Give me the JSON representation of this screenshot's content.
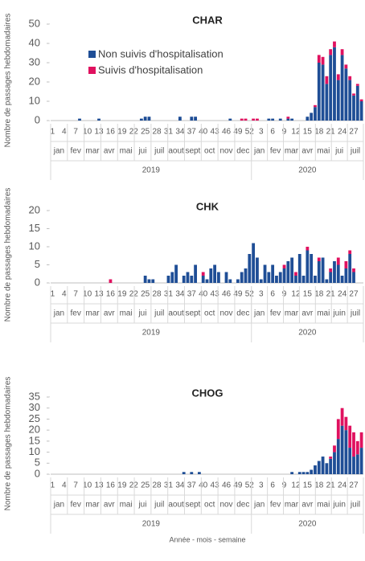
{
  "chart_data": [
    {
      "type": "bar",
      "stacked": true,
      "title": "CHAR",
      "y_label": "Nombre de passages hebdomadaires",
      "legend": "upper left",
      "categories": [
        "1",
        null,
        null,
        "4",
        null,
        null,
        "7",
        null,
        null,
        "10",
        null,
        null,
        "13",
        null,
        null,
        "16",
        null,
        null,
        "19",
        null,
        null,
        "22",
        null,
        null,
        "25",
        null,
        null,
        "28",
        null,
        null,
        "31",
        null,
        null,
        "34",
        null,
        null,
        "37",
        null,
        null,
        "40",
        null,
        null,
        "43",
        null,
        null,
        "46",
        null,
        null,
        "49",
        null,
        null,
        "52",
        null,
        null,
        "3",
        null,
        null,
        "6",
        null,
        null,
        "9",
        null,
        null,
        "12",
        null,
        null,
        "15",
        null,
        null,
        "18",
        null,
        null,
        "21",
        null,
        null,
        "24",
        null,
        null,
        "27",
        null,
        null
      ],
      "months": [
        "jan",
        "fev",
        "mar",
        "avr",
        "mai",
        "jui",
        "juil",
        "aout",
        "sept",
        "oct",
        "nov",
        "dec",
        "jan",
        "fev",
        "mar",
        "avr",
        "mai",
        "jui",
        "juil"
      ],
      "years": [
        "2019",
        "2020"
      ],
      "series": [
        {
          "name": "Non suivis d'hospitalisation",
          "color": "#1f4e96",
          "values": [
            0,
            0,
            0,
            0,
            0,
            0,
            0,
            1,
            0,
            0,
            0,
            0,
            1,
            0,
            0,
            0,
            0,
            0,
            0,
            0,
            0,
            0,
            0,
            1,
            2,
            2,
            0,
            0,
            0,
            0,
            0,
            0,
            0,
            2,
            0,
            0,
            2,
            2,
            0,
            0,
            0,
            0,
            0,
            0,
            0,
            0,
            1,
            0,
            0,
            0,
            0,
            0,
            0,
            0,
            0,
            0,
            1,
            1,
            0,
            1,
            0,
            1,
            1,
            0,
            0,
            0,
            2,
            4,
            7,
            30,
            29,
            19,
            34,
            38,
            21,
            34,
            27,
            21,
            13,
            18,
            10
          ]
        },
        {
          "name": "Suivis d'hospitalisation",
          "color": "#e0115f",
          "values": [
            0,
            0,
            0,
            0,
            0,
            0,
            0,
            0,
            0,
            0,
            0,
            0,
            0,
            0,
            0,
            0,
            0,
            0,
            0,
            0,
            0,
            0,
            0,
            0,
            0,
            0,
            0,
            0,
            0,
            0,
            0,
            0,
            0,
            0,
            0,
            0,
            0,
            0,
            0,
            0,
            0,
            0,
            0,
            0,
            0,
            0,
            0,
            0,
            0,
            1,
            1,
            0,
            1,
            1,
            0,
            0,
            0,
            0,
            0,
            0,
            0,
            1,
            0,
            0,
            0,
            0,
            0,
            0,
            1,
            4,
            4,
            4,
            3,
            3,
            3,
            3,
            2,
            2,
            1,
            1,
            1
          ]
        }
      ],
      "ylim": [
        0,
        50
      ],
      "yticks": [
        0,
        10,
        20,
        30,
        40,
        50
      ]
    },
    {
      "type": "bar",
      "stacked": true,
      "title": "CHK",
      "y_label": "Nombre de passages hebdomadaires",
      "categories": [
        "1",
        null,
        null,
        "4",
        null,
        null,
        "7",
        null,
        null,
        "10",
        null,
        null,
        "13",
        null,
        null,
        "16",
        null,
        null,
        "19",
        null,
        null,
        "22",
        null,
        null,
        "25",
        null,
        null,
        "28",
        null,
        null,
        "31",
        null,
        null,
        "34",
        null,
        null,
        "37",
        null,
        null,
        "40",
        null,
        null,
        "43",
        null,
        null,
        "46",
        null,
        null,
        "49",
        null,
        null,
        "52",
        null,
        null,
        "3",
        null,
        null,
        "6",
        null,
        null,
        "9",
        null,
        null,
        "12",
        null,
        null,
        "15",
        null,
        null,
        "18",
        null,
        null,
        "21",
        null,
        null,
        "24",
        null,
        null,
        "27",
        null,
        null
      ],
      "months": [
        "jan",
        "fev",
        "mar",
        "avr",
        "mai",
        "jui",
        "juil",
        "aout",
        "sept",
        "oct",
        "nov",
        "dec",
        "jan",
        "fev",
        "mar",
        "avr",
        "mai",
        "juin",
        "juil"
      ],
      "years": [
        "2019",
        "2020"
      ],
      "series": [
        {
          "color": "#1f4e96",
          "values": [
            0,
            0,
            0,
            0,
            0,
            0,
            0,
            0,
            0,
            0,
            0,
            0,
            0,
            0,
            0,
            0,
            0,
            0,
            0,
            0,
            0,
            0,
            0,
            0,
            2,
            1,
            1,
            0,
            0,
            0,
            2,
            3,
            5,
            0,
            2,
            3,
            2,
            5,
            0,
            2,
            1,
            4,
            5,
            3,
            0,
            3,
            1,
            0,
            1,
            3,
            4,
            8,
            11,
            7,
            1,
            5,
            3,
            5,
            2,
            3,
            4,
            6,
            7,
            2,
            8,
            2,
            9,
            8,
            2,
            6,
            7,
            1,
            3,
            6,
            5,
            2,
            4,
            8,
            3,
            0,
            0
          ]
        },
        {
          "color": "#e0115f",
          "values": [
            0,
            0,
            0,
            0,
            0,
            0,
            0,
            0,
            0,
            0,
            0,
            0,
            0,
            0,
            0,
            1,
            0,
            0,
            0,
            0,
            0,
            0,
            0,
            0,
            0,
            0,
            0,
            0,
            0,
            0,
            0,
            0,
            0,
            0,
            0,
            0,
            0,
            0,
            0,
            1,
            0,
            0,
            0,
            0,
            0,
            0,
            0,
            0,
            0,
            0,
            0,
            0,
            0,
            0,
            0,
            0,
            0,
            0,
            0,
            0,
            1,
            0,
            0,
            1,
            0,
            0,
            1,
            0,
            0,
            1,
            0,
            0,
            1,
            0,
            2,
            0,
            2,
            1,
            1,
            0,
            0
          ]
        }
      ],
      "ylim": [
        0,
        20
      ],
      "yticks": [
        0,
        5,
        10,
        15,
        20
      ]
    },
    {
      "type": "bar",
      "stacked": true,
      "title": "CHOG",
      "y_label": "Nombre de passages hebdomadaires",
      "x_label": "Année - mois - semaine",
      "categories": [
        "1",
        null,
        null,
        "4",
        null,
        null,
        "7",
        null,
        null,
        "10",
        null,
        null,
        "13",
        null,
        null,
        "16",
        null,
        null,
        "19",
        null,
        null,
        "22",
        null,
        null,
        "25",
        null,
        null,
        "28",
        null,
        null,
        "31",
        null,
        null,
        "34",
        null,
        null,
        "37",
        null,
        null,
        "40",
        null,
        null,
        "43",
        null,
        null,
        "46",
        null,
        null,
        "49",
        null,
        null,
        "52",
        null,
        null,
        "3",
        null,
        null,
        "6",
        null,
        null,
        "9",
        null,
        null,
        "12",
        null,
        null,
        "15",
        null,
        null,
        "18",
        null,
        null,
        "21",
        null,
        null,
        "24",
        null,
        null,
        "27",
        null,
        null
      ],
      "months": [
        "jan",
        "fev",
        "mar",
        "avr",
        "mai",
        "jui",
        "juil",
        "aout",
        "sept",
        "oct",
        "nov",
        "dec",
        "jan",
        "fev",
        "mar",
        "avr",
        "mai",
        "juin",
        "juil"
      ],
      "years": [
        "2019",
        "2020"
      ],
      "series": [
        {
          "color": "#1f4e96",
          "values": [
            0,
            0,
            0,
            0,
            0,
            0,
            0,
            0,
            0,
            0,
            0,
            0,
            0,
            0,
            0,
            0,
            0,
            0,
            0,
            0,
            0,
            0,
            0,
            0,
            0,
            0,
            0,
            0,
            0,
            0,
            0,
            0,
            0,
            0,
            1,
            0,
            1,
            0,
            1,
            0,
            0,
            0,
            0,
            0,
            0,
            0,
            0,
            0,
            0,
            0,
            0,
            0,
            0,
            0,
            0,
            0,
            0,
            0,
            0,
            0,
            0,
            0,
            1,
            0,
            1,
            1,
            1,
            2,
            4,
            6,
            8,
            5,
            7,
            10,
            16,
            22,
            20,
            12,
            8,
            9,
            12
          ]
        },
        {
          "color": "#e0115f",
          "values": [
            0,
            0,
            0,
            0,
            0,
            0,
            0,
            0,
            0,
            0,
            0,
            0,
            0,
            0,
            0,
            0,
            0,
            0,
            0,
            0,
            0,
            0,
            0,
            0,
            0,
            0,
            0,
            0,
            0,
            0,
            0,
            0,
            0,
            0,
            0,
            0,
            0,
            0,
            0,
            0,
            0,
            0,
            0,
            0,
            0,
            0,
            0,
            0,
            0,
            0,
            0,
            0,
            0,
            0,
            0,
            0,
            0,
            0,
            0,
            0,
            0,
            0,
            0,
            0,
            0,
            0,
            0,
            0,
            0,
            0,
            0,
            0,
            1,
            3,
            9,
            8,
            6,
            10,
            11,
            6,
            7
          ]
        }
      ],
      "ylim": [
        0,
        35
      ],
      "yticks": [
        0,
        5,
        10,
        15,
        20,
        25,
        30,
        35
      ]
    }
  ]
}
